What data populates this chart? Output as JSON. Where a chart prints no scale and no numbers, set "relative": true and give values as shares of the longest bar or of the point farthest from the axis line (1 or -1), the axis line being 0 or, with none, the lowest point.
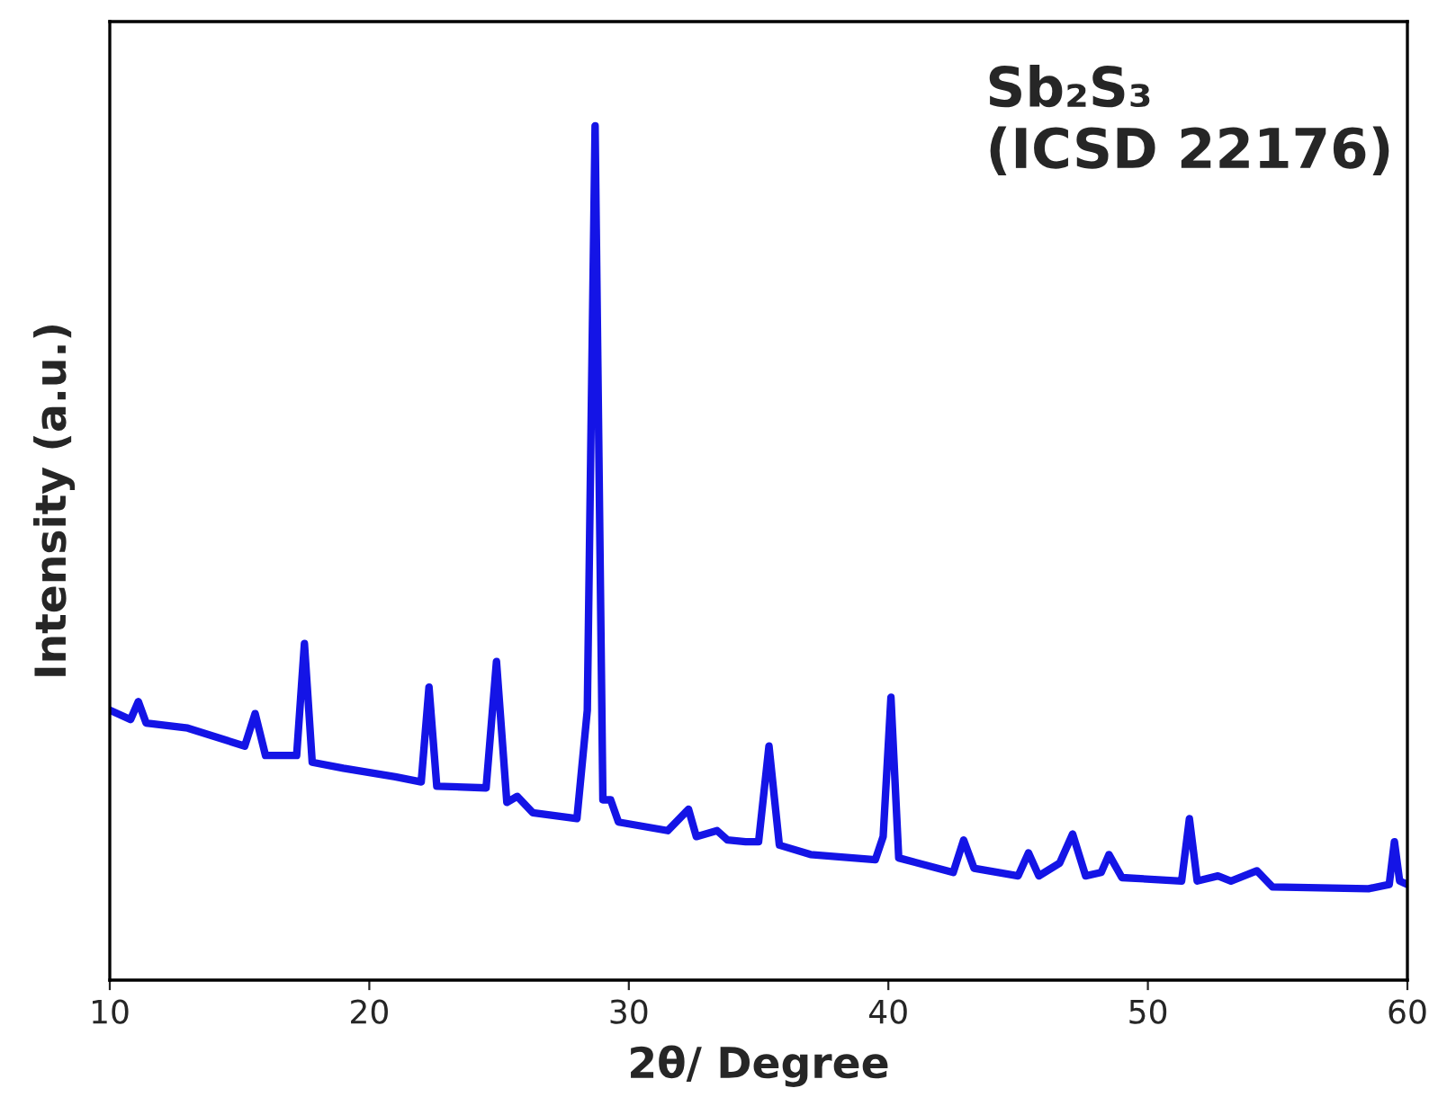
{
  "chart_data": {
    "type": "line",
    "relative": true,
    "xlabel": "2θ/ Degree",
    "ylabel": "Intensity (a.u.)",
    "annotations": [
      "Sb₂S₃\n(ICSD 22176)"
    ],
    "xlim": [
      10,
      60
    ],
    "xticks": [
      10,
      20,
      30,
      40,
      50,
      60
    ],
    "tick_labels": "x",
    "grid": false,
    "legend": false,
    "series": [
      {
        "color": "#1414e6",
        "x": [
          10.0,
          10.8,
          11.1,
          11.4,
          13,
          15.2,
          15.6,
          16.0,
          17.2,
          17.5,
          17.8,
          19,
          21,
          22.0,
          22.3,
          22.6,
          24.5,
          24.9,
          25.3,
          25.7,
          26.3,
          28.0,
          28.4,
          28.7,
          29.0,
          29.3,
          29.6,
          31.5,
          32.3,
          32.6,
          33.4,
          33.8,
          34.5,
          35.0,
          35.4,
          35.8,
          37.0,
          39.5,
          39.8,
          40.1,
          40.4,
          42.5,
          42.9,
          43.3,
          45.0,
          45.4,
          45.8,
          46.6,
          47.1,
          47.6,
          48.2,
          48.5,
          49.0,
          51.3,
          51.6,
          51.9,
          52.7,
          53.2,
          54.2,
          54.8,
          58.5,
          59.3,
          59.5,
          59.7,
          60.0
        ],
        "values": [
          0.316,
          0.305,
          0.326,
          0.301,
          0.295,
          0.274,
          0.312,
          0.263,
          0.263,
          0.394,
          0.255,
          0.248,
          0.238,
          0.232,
          0.343,
          0.227,
          0.225,
          0.373,
          0.208,
          0.215,
          0.196,
          0.189,
          0.316,
          1,
          0.211,
          0.211,
          0.185,
          0.175,
          0.2,
          0.168,
          0.175,
          0.164,
          0.162,
          0.162,
          0.274,
          0.158,
          0.147,
          0.141,
          0.168,
          0.331,
          0.143,
          0.126,
          0.164,
          0.131,
          0.122,
          0.149,
          0.122,
          0.137,
          0.171,
          0.122,
          0.126,
          0.147,
          0.12,
          0.116,
          0.189,
          0.116,
          0.122,
          0.116,
          0.128,
          0.109,
          0.107,
          0.112,
          0.162,
          0.116,
          0.112
        ]
      }
    ]
  }
}
